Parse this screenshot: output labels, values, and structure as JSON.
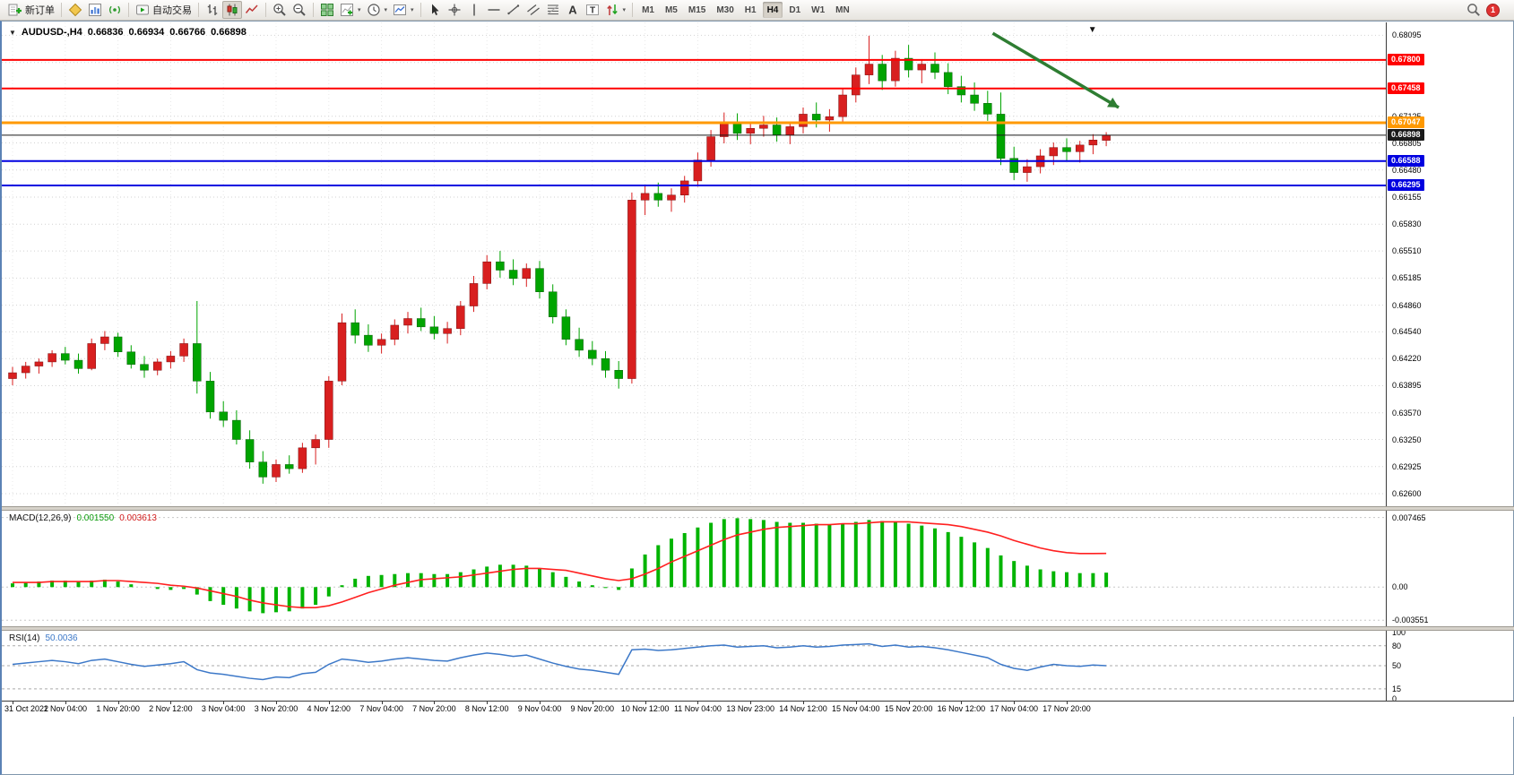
{
  "toolbar": {
    "groups": [
      {
        "items": [
          {
            "icon": "new-order",
            "label": "新订单"
          }
        ]
      },
      {
        "items": [
          {
            "icon": "metaeditor"
          },
          {
            "icon": "new-chart"
          },
          {
            "icon": "signals"
          }
        ]
      },
      {
        "items": [
          {
            "icon": "autotrading",
            "label": "自动交易"
          }
        ]
      },
      {
        "items": [
          {
            "icon": "ohlc-bars"
          },
          {
            "icon": "candlesticks",
            "active": true
          },
          {
            "icon": "line-chart"
          }
        ]
      },
      {
        "items": [
          {
            "icon": "zoom-in"
          },
          {
            "icon": "zoom-out"
          }
        ]
      },
      {
        "items": [
          {
            "icon": "tile-windows"
          },
          {
            "icon": "indicators",
            "dropdown": true
          },
          {
            "icon": "periods",
            "dropdown": true
          },
          {
            "icon": "templates",
            "dropdown": true
          }
        ]
      },
      {
        "items": [
          {
            "icon": "cursor"
          },
          {
            "icon": "crosshair"
          },
          {
            "icon": "vertical-line"
          },
          {
            "icon": "horizontal-line"
          },
          {
            "icon": "trendline"
          },
          {
            "icon": "channel"
          },
          {
            "icon": "fibonacci"
          },
          {
            "icon": "text"
          },
          {
            "icon": "text-label"
          },
          {
            "icon": "arrows",
            "dropdown": true
          }
        ]
      }
    ],
    "timeframes": [
      "M1",
      "M5",
      "M15",
      "M30",
      "H1",
      "H4",
      "D1",
      "W1",
      "MN"
    ],
    "active_timeframe": "H4",
    "notification_count": "1"
  },
  "chart_header": {
    "collapse_glyph": "▼",
    "symbol": "AUDUSD-,H4",
    "open": "0.66836",
    "high": "0.66934",
    "low": "0.66766",
    "close": "0.66898"
  },
  "chart_data": [
    {
      "type": "candlestick",
      "title": "AUDUSD-,H4",
      "up_color": "#d81f1f",
      "down_color": "#00a400",
      "ylim": [
        0.6245,
        0.6825
      ],
      "y_axis": [
        "0.68095",
        "0.67770",
        "0.67125",
        "0.66805",
        "0.66480",
        "0.66155",
        "0.65830",
        "0.65510",
        "0.65185",
        "0.64860",
        "0.64540",
        "0.64220",
        "0.63895",
        "0.63570",
        "0.63250",
        "0.62925",
        "0.62600"
      ],
      "x_labels": [
        "31 Oct 2022",
        "1 Nov 04:00",
        "1 Nov 20:00",
        "2 Nov 12:00",
        "3 Nov 04:00",
        "3 Nov 20:00",
        "4 Nov 12:00",
        "7 Nov 04:00",
        "7 Nov 20:00",
        "8 Nov 12:00",
        "9 Nov 04:00",
        "9 Nov 20:00",
        "10 Nov 12:00",
        "11 Nov 04:00",
        "13 Nov 23:00",
        "14 Nov 12:00",
        "15 Nov 04:00",
        "15 Nov 20:00",
        "16 Nov 12:00",
        "17 Nov 04:00",
        "17 Nov 20:00"
      ],
      "label_every": 4,
      "candles": [
        [
          0.6398,
          0.6412,
          0.639,
          0.6405
        ],
        [
          0.6405,
          0.6418,
          0.6398,
          0.6413
        ],
        [
          0.6413,
          0.6422,
          0.6404,
          0.6418
        ],
        [
          0.6418,
          0.6432,
          0.6412,
          0.6428
        ],
        [
          0.6428,
          0.6436,
          0.6415,
          0.642
        ],
        [
          0.642,
          0.6428,
          0.6404,
          0.641
        ],
        [
          0.641,
          0.6446,
          0.6408,
          0.644
        ],
        [
          0.644,
          0.6455,
          0.6432,
          0.6448
        ],
        [
          0.6448,
          0.6453,
          0.6424,
          0.643
        ],
        [
          0.643,
          0.6438,
          0.641,
          0.6415
        ],
        [
          0.6415,
          0.6425,
          0.6399,
          0.6408
        ],
        [
          0.6408,
          0.6422,
          0.6402,
          0.6418
        ],
        [
          0.6418,
          0.6431,
          0.641,
          0.6425
        ],
        [
          0.6425,
          0.6446,
          0.6418,
          0.644
        ],
        [
          0.644,
          0.6491,
          0.638,
          0.6395
        ],
        [
          0.6395,
          0.6406,
          0.635,
          0.6358
        ],
        [
          0.6358,
          0.6371,
          0.634,
          0.6348
        ],
        [
          0.6348,
          0.636,
          0.6319,
          0.6325
        ],
        [
          0.6325,
          0.6336,
          0.629,
          0.6298
        ],
        [
          0.6298,
          0.6311,
          0.6272,
          0.628
        ],
        [
          0.628,
          0.6301,
          0.6274,
          0.6295
        ],
        [
          0.6295,
          0.6306,
          0.6284,
          0.629
        ],
        [
          0.629,
          0.6321,
          0.6285,
          0.6315
        ],
        [
          0.6315,
          0.6331,
          0.6295,
          0.6325
        ],
        [
          0.6325,
          0.6401,
          0.6315,
          0.6395
        ],
        [
          0.6395,
          0.6476,
          0.639,
          0.6465
        ],
        [
          0.6465,
          0.6481,
          0.644,
          0.645
        ],
        [
          0.645,
          0.6463,
          0.643,
          0.6438
        ],
        [
          0.6438,
          0.6452,
          0.6428,
          0.6445
        ],
        [
          0.6445,
          0.6469,
          0.6438,
          0.6462
        ],
        [
          0.6462,
          0.6478,
          0.6452,
          0.647
        ],
        [
          0.647,
          0.6483,
          0.6455,
          0.646
        ],
        [
          0.646,
          0.6473,
          0.6445,
          0.6452
        ],
        [
          0.6452,
          0.6466,
          0.644,
          0.6458
        ],
        [
          0.6458,
          0.6491,
          0.645,
          0.6485
        ],
        [
          0.6485,
          0.6521,
          0.6478,
          0.6512
        ],
        [
          0.6512,
          0.6546,
          0.6505,
          0.6538
        ],
        [
          0.6538,
          0.6551,
          0.6519,
          0.6528
        ],
        [
          0.6528,
          0.6541,
          0.651,
          0.6518
        ],
        [
          0.6518,
          0.6536,
          0.6508,
          0.653
        ],
        [
          0.653,
          0.6539,
          0.6494,
          0.6502
        ],
        [
          0.6502,
          0.6511,
          0.6464,
          0.6472
        ],
        [
          0.6472,
          0.6481,
          0.6438,
          0.6445
        ],
        [
          0.6445,
          0.6459,
          0.6424,
          0.6432
        ],
        [
          0.6432,
          0.6443,
          0.6414,
          0.6422
        ],
        [
          0.6422,
          0.6431,
          0.6399,
          0.6408
        ],
        [
          0.6408,
          0.6419,
          0.6386,
          0.6398
        ],
        [
          0.6398,
          0.6621,
          0.6392,
          0.6612
        ],
        [
          0.6612,
          0.6629,
          0.6594,
          0.662
        ],
        [
          0.662,
          0.6633,
          0.6604,
          0.6612
        ],
        [
          0.6612,
          0.6626,
          0.6598,
          0.6618
        ],
        [
          0.6618,
          0.6641,
          0.6609,
          0.6635
        ],
        [
          0.6635,
          0.6669,
          0.6628,
          0.666
        ],
        [
          0.666,
          0.6696,
          0.6652,
          0.6688
        ],
        [
          0.6688,
          0.6717,
          0.668,
          0.6705
        ],
        [
          0.6705,
          0.6716,
          0.6684,
          0.6692
        ],
        [
          0.6692,
          0.6706,
          0.6679,
          0.6698
        ],
        [
          0.6698,
          0.6713,
          0.6688,
          0.6702
        ],
        [
          0.6702,
          0.6711,
          0.6682,
          0.669
        ],
        [
          0.669,
          0.6706,
          0.6679,
          0.67
        ],
        [
          0.67,
          0.6723,
          0.6692,
          0.6715
        ],
        [
          0.6715,
          0.6729,
          0.6699,
          0.6708
        ],
        [
          0.6708,
          0.6721,
          0.6694,
          0.6712
        ],
        [
          0.6712,
          0.6746,
          0.6705,
          0.6738
        ],
        [
          0.6738,
          0.6771,
          0.6729,
          0.6762
        ],
        [
          0.6762,
          0.6809,
          0.6751,
          0.6775
        ],
        [
          0.6775,
          0.6786,
          0.6744,
          0.6755
        ],
        [
          0.6755,
          0.6791,
          0.6748,
          0.6782
        ],
        [
          0.6782,
          0.6798,
          0.6759,
          0.6768
        ],
        [
          0.6768,
          0.6781,
          0.6752,
          0.6775
        ],
        [
          0.6775,
          0.6789,
          0.6757,
          0.6765
        ],
        [
          0.6765,
          0.6776,
          0.6739,
          0.6748
        ],
        [
          0.6748,
          0.6761,
          0.6729,
          0.6738
        ],
        [
          0.6738,
          0.6753,
          0.6719,
          0.6728
        ],
        [
          0.6728,
          0.6743,
          0.6707,
          0.6715
        ],
        [
          0.6715,
          0.6741,
          0.6654,
          0.6662
        ],
        [
          0.6662,
          0.6676,
          0.6636,
          0.6645
        ],
        [
          0.6645,
          0.6661,
          0.6634,
          0.6652
        ],
        [
          0.6652,
          0.6673,
          0.6644,
          0.6665
        ],
        [
          0.6665,
          0.6681,
          0.6654,
          0.6675
        ],
        [
          0.6675,
          0.6686,
          0.6659,
          0.667
        ],
        [
          0.667,
          0.6683,
          0.6657,
          0.6678
        ],
        [
          0.6678,
          0.6691,
          0.6667,
          0.6684
        ],
        [
          0.66836,
          0.66934,
          0.66766,
          0.66898
        ]
      ],
      "hlines": [
        {
          "price": 0.678,
          "label": "0.67800",
          "color": "#ff0000",
          "width": 2
        },
        {
          "price": 0.67458,
          "label": "0.67458",
          "color": "#ff0000",
          "width": 2
        },
        {
          "price": 0.67047,
          "label": "0.67047",
          "color": "#ff9900",
          "width": 3
        },
        {
          "price": 0.66898,
          "label": "0.66898",
          "color": "#1a1a1a",
          "width": 1
        },
        {
          "price": 0.66588,
          "label": "0.66588",
          "color": "#0000e0",
          "width": 2
        },
        {
          "price": 0.66295,
          "label": "0.66295",
          "color": "#0000e0",
          "width": 2
        }
      ],
      "annotations": {
        "trend_arrow": {
          "x1_frac": 0.716,
          "price1": 0.6812,
          "x2_frac": 0.807,
          "price2": 0.6723,
          "color": "#2e7d32"
        },
        "marker": {
          "glyph": "▼",
          "x_frac": 0.788
        }
      }
    },
    {
      "type": "macd",
      "label": "MACD(12,26,9)",
      "values": [
        "0.001550",
        "0.003613"
      ],
      "y_axis": [
        "0.007465",
        "0.00",
        "-0.003551"
      ],
      "ylim": [
        -0.0043,
        0.0082
      ],
      "hist_color": "#00b400",
      "signal_color": "#ff2020",
      "histogram": [
        0.0004,
        0.0005,
        0.0006,
        0.0007,
        0.0007,
        0.0006,
        0.0007,
        0.0008,
        0.0006,
        0.0003,
        0.0,
        -0.0002,
        -0.0003,
        -0.0002,
        -0.0008,
        -0.0015,
        -0.0019,
        -0.0023,
        -0.0026,
        -0.0028,
        -0.0027,
        -0.0026,
        -0.0023,
        -0.0019,
        -0.001,
        0.0002,
        0.0009,
        0.0012,
        0.0013,
        0.0014,
        0.0015,
        0.0015,
        0.0014,
        0.0014,
        0.0016,
        0.0019,
        0.0022,
        0.0024,
        0.0024,
        0.0023,
        0.002,
        0.0016,
        0.0011,
        0.0006,
        0.0002,
        -0.0001,
        -0.0003,
        0.002,
        0.0035,
        0.0045,
        0.0052,
        0.0058,
        0.0064,
        0.0069,
        0.0073,
        0.0074,
        0.0073,
        0.0072,
        0.007,
        0.0069,
        0.0069,
        0.0068,
        0.0067,
        0.0068,
        0.007,
        0.0072,
        0.0071,
        0.007,
        0.0068,
        0.0066,
        0.0063,
        0.0059,
        0.0054,
        0.0048,
        0.0042,
        0.0034,
        0.0028,
        0.0023,
        0.0019,
        0.0017,
        0.0016,
        0.0015,
        0.0015,
        0.00155
      ],
      "signal": [
        0.0005,
        0.0005,
        0.0005,
        0.0006,
        0.0006,
        0.0006,
        0.0006,
        0.0007,
        0.0007,
        0.0006,
        0.0005,
        0.0004,
        0.0002,
        0.0001,
        -0.0001,
        -0.0004,
        -0.0007,
        -0.001,
        -0.0014,
        -0.0017,
        -0.0019,
        -0.0021,
        -0.0022,
        -0.0022,
        -0.002,
        -0.0016,
        -0.0011,
        -0.0006,
        -0.0002,
        0.0002,
        0.0005,
        0.0008,
        0.0009,
        0.001,
        0.0011,
        0.0013,
        0.0015,
        0.0017,
        0.0019,
        0.002,
        0.002,
        0.0019,
        0.0018,
        0.0015,
        0.0012,
        0.0009,
        0.0007,
        0.0009,
        0.0014,
        0.002,
        0.0027,
        0.0033,
        0.0039,
        0.0045,
        0.0051,
        0.0056,
        0.0059,
        0.0062,
        0.0064,
        0.0065,
        0.0066,
        0.0067,
        0.0067,
        0.0068,
        0.0068,
        0.0069,
        0.007,
        0.007,
        0.007,
        0.0069,
        0.0068,
        0.0067,
        0.0065,
        0.0062,
        0.0059,
        0.0055,
        0.005,
        0.0046,
        0.0042,
        0.0039,
        0.0037,
        0.0036,
        0.0036,
        0.003613
      ]
    },
    {
      "type": "rsi",
      "label": "RSI(14)",
      "value": "50.0036",
      "y_axis": [
        "100",
        "80",
        "50",
        "15",
        "0"
      ],
      "levels": [
        80,
        50,
        15
      ],
      "ylim": [
        0,
        100
      ],
      "color": "#3c78c8",
      "values": [
        52,
        54,
        56,
        58,
        56,
        53,
        58,
        60,
        56,
        52,
        49,
        51,
        53,
        56,
        44,
        39,
        37,
        34,
        31,
        29,
        33,
        32,
        38,
        40,
        52,
        60,
        58,
        55,
        57,
        60,
        62,
        60,
        58,
        57,
        62,
        66,
        69,
        67,
        64,
        66,
        60,
        54,
        49,
        45,
        43,
        40,
        37,
        74,
        75,
        73,
        74,
        76,
        78,
        80,
        81,
        78,
        79,
        80,
        77,
        78,
        80,
        78,
        79,
        81,
        82,
        83,
        79,
        81,
        78,
        79,
        77,
        74,
        70,
        66,
        62,
        52,
        46,
        43,
        48,
        52,
        50,
        49,
        51,
        50.0036
      ]
    }
  ]
}
